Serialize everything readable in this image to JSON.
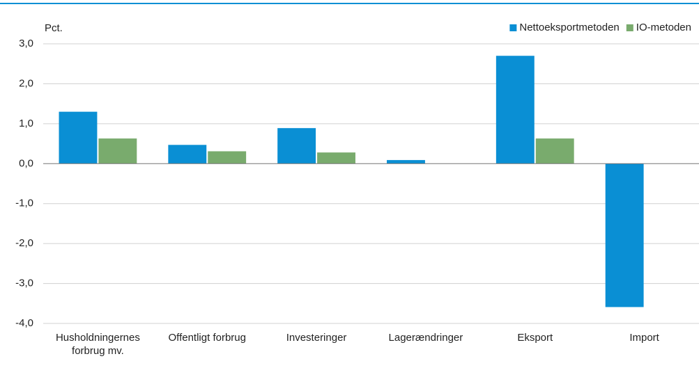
{
  "chart_data": {
    "type": "bar",
    "y_label": "Pct.",
    "categories": [
      "Husholdningernes forbrug mv.",
      "Offentligt forbrug",
      "Investeringer",
      "Lagerændringer",
      "Eksport",
      "Import"
    ],
    "series": [
      {
        "name": "Nettoeksportmetoden",
        "color": "#0a8fd4",
        "values": [
          1.3,
          0.47,
          0.89,
          0.09,
          2.7,
          -3.59
        ]
      },
      {
        "name": "IO-metoden",
        "color": "#79ab6d",
        "values": [
          0.63,
          0.31,
          0.28,
          0,
          0.63,
          0
        ]
      }
    ],
    "ylim": [
      -4,
      3
    ],
    "yticks": [
      {
        "value": -4,
        "label": "-4,0"
      },
      {
        "value": -3,
        "label": "-3,0"
      },
      {
        "value": -2,
        "label": "-2,0"
      },
      {
        "value": -1,
        "label": "-1,0"
      },
      {
        "value": 0,
        "label": "0,0"
      },
      {
        "value": 1,
        "label": "1,0"
      },
      {
        "value": 2,
        "label": "2,0"
      },
      {
        "value": 3,
        "label": "3,0"
      }
    ],
    "grid": true,
    "legend": "top-right"
  }
}
